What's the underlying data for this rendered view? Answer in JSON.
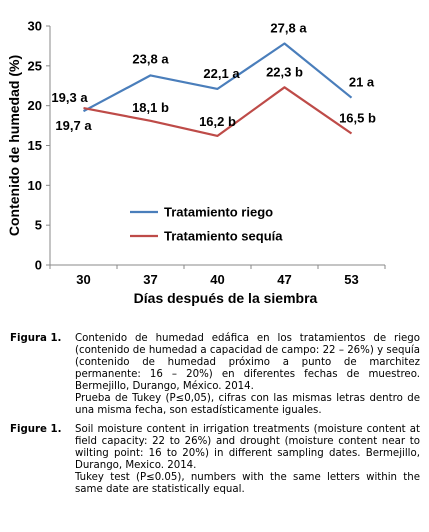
{
  "chart_data": {
    "type": "line",
    "categories": [
      "30",
      "37",
      "40",
      "47",
      "53"
    ],
    "series": [
      {
        "name": "Tratamiento riego",
        "color": "#4a7ebb",
        "values": [
          19.3,
          23.8,
          22.1,
          27.8,
          21
        ],
        "labels": [
          "19,3 a",
          "23,8 a",
          "22,1 a",
          "27,8 a",
          "21 a"
        ]
      },
      {
        "name": "Tratamiento sequía",
        "color": "#be4b48",
        "values": [
          19.7,
          18.1,
          16.2,
          22.3,
          16.5
        ],
        "labels": [
          "19,7 a",
          "18,1 b",
          "16,2 b",
          "22,3 b",
          "16,5 b"
        ]
      }
    ],
    "xlabel": "Días después de la siembra",
    "ylabel": "Contenido de humedad (%)",
    "ylim": [
      0,
      30
    ],
    "yticks": [
      "0",
      "5",
      "10",
      "15",
      "20",
      "25",
      "30"
    ],
    "grid": false,
    "legend_position": "inside-bottom-center"
  },
  "captions": [
    {
      "label": "Figura 1.",
      "paragraphs": [
        "Contenido de humedad edáfica en los tratamientos de riego (contenido de humedad a capacidad de campo: 22 – 26%) y sequía (contenido de humedad próximo a punto de marchitez permanente: 16 – 20%) en diferentes fechas de muestreo.  Bermejillo, Durango, México. 2014.",
        "Prueba de Tukey (P≤0,05), cifras con las mismas letras dentro de una misma fecha, son estadísticamente iguales."
      ]
    },
    {
      "label": "Figure 1.",
      "paragraphs": [
        "Soil moisture content in irrigation treatments (moisture content at field capacity: 22 to 26%) and drought (moisture content near to wilting point: 16 to 20%) in different sampling dates. Bermejillo, Durango, Mexico. 2014.",
        "Tukey test (P≤0.05), numbers with the same letters within the same date are statistically equal."
      ]
    }
  ]
}
